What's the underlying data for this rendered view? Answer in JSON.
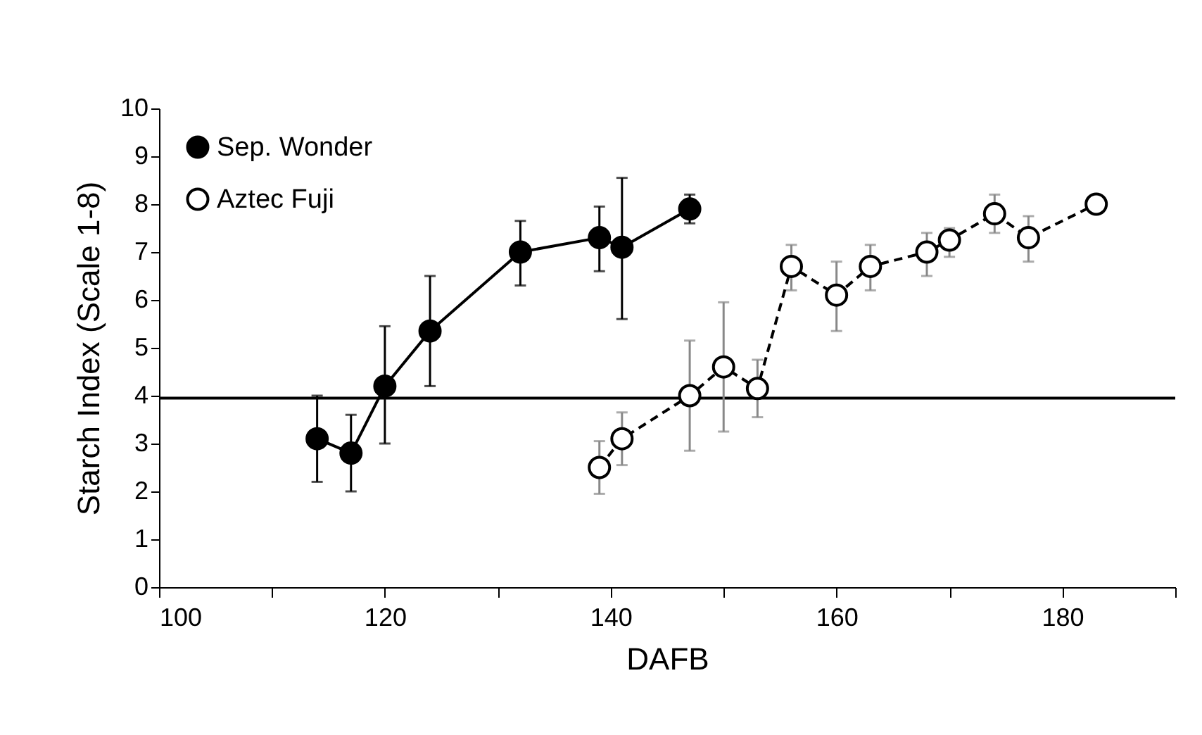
{
  "chart_data": {
    "type": "line",
    "xlabel": "DAFB",
    "ylabel": "Starch Index (Scale 1-8)",
    "xlim": [
      100,
      190
    ],
    "xticks": [
      100,
      {
        "value": 110,
        "label": null
      },
      120,
      {
        "value": 130,
        "label": null
      },
      140,
      {
        "value": 150,
        "label": null
      },
      160,
      {
        "value": 170,
        "label": null
      },
      180,
      {
        "value": 190,
        "label": null
      }
    ],
    "ylim": [
      0,
      10
    ],
    "yticks": [
      0,
      1,
      2,
      3,
      4,
      5,
      6,
      7,
      8,
      9,
      10
    ],
    "grid": false,
    "legend": "top left",
    "marker": "circle",
    "ref_lines": [
      {
        "axis": "y",
        "value": 3.95,
        "color": "#000000"
      }
    ],
    "series": [
      {
        "name": "Sep. Wonder",
        "color": "#000000",
        "line_style": "solid",
        "x": [
          114,
          117,
          120,
          124,
          132,
          139,
          141,
          147
        ],
        "values": [
          3.1,
          2.8,
          4.2,
          5.35,
          7.0,
          7.3,
          7.1,
          7.9
        ],
        "errors": [
          [
            2.2,
            4.0
          ],
          [
            2.0,
            3.6
          ],
          [
            3.0,
            5.45
          ],
          [
            4.2,
            6.5
          ],
          [
            6.3,
            7.65
          ],
          [
            6.6,
            7.95
          ],
          [
            5.6,
            8.55
          ],
          [
            7.6,
            8.2
          ]
        ]
      },
      {
        "name": "Aztec Fuji",
        "color": "#000000",
        "line_style": "dashed",
        "x": [
          139,
          141,
          147,
          150,
          153,
          156,
          160,
          163,
          168,
          170,
          174,
          177,
          183
        ],
        "values": [
          2.5,
          3.1,
          4.0,
          4.6,
          4.15,
          6.7,
          6.1,
          6.7,
          7.0,
          7.25,
          7.8,
          7.3,
          8.0
        ],
        "errors": [
          [
            1.95,
            3.05
          ],
          [
            2.55,
            3.65
          ],
          [
            2.85,
            5.15
          ],
          [
            3.25,
            5.95
          ],
          [
            3.55,
            4.75
          ],
          [
            6.2,
            7.15
          ],
          [
            5.35,
            6.8
          ],
          [
            6.2,
            7.15
          ],
          [
            6.5,
            7.4
          ],
          [
            6.9,
            7.5
          ],
          [
            7.4,
            8.2
          ],
          [
            6.8,
            7.75
          ],
          null
        ]
      }
    ]
  }
}
